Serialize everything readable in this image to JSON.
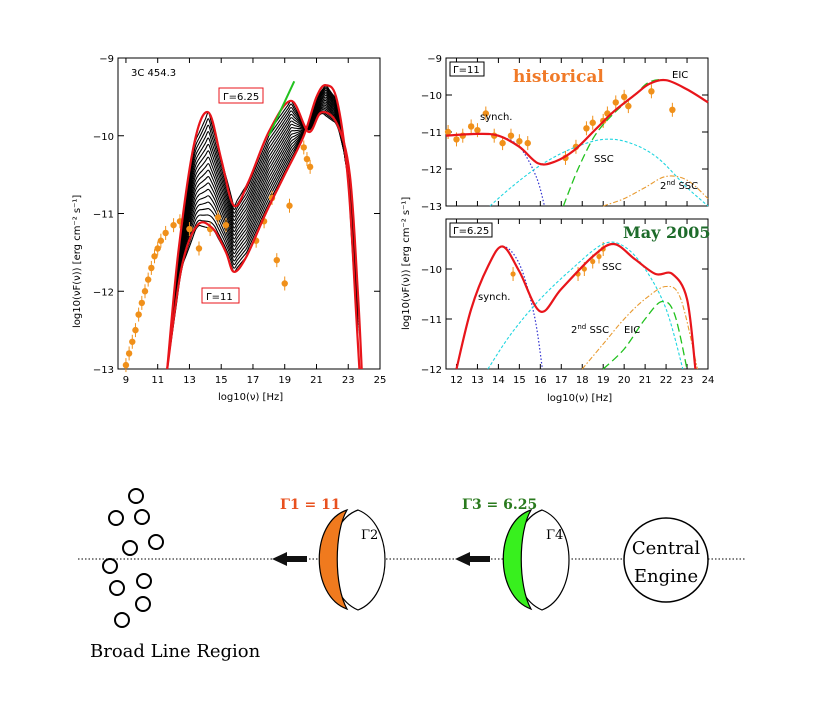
{
  "colors": {
    "red": "#e8151b",
    "orange": "#f0901a",
    "green": "#22c21f",
    "blue": "#3030d0",
    "cyan": "#20d6e0",
    "ssc2": "#e89a30",
    "title_orange": "#f07a28",
    "title_green": "#1d6b2a",
    "gamma1_fill": "#f07a1e",
    "gamma3_fill": "#38f01e",
    "gamma1_text": "#e8501e",
    "gamma3_text": "#2a7a1e"
  },
  "chart_data": [
    {
      "type": "line",
      "panel": "left",
      "source_label": "3C 454.3",
      "xlabel": "log10(ν) [Hz]",
      "ylabel": "log10(νF(ν)) [erg cm⁻² s⁻¹]",
      "xlim": [
        8.5,
        25
      ],
      "ylim": [
        -13,
        -9
      ],
      "xticks": [
        9,
        11,
        13,
        15,
        17,
        19,
        21,
        23,
        25
      ],
      "yticks": [
        -13,
        -12,
        -11,
        -10,
        -9
      ],
      "annotations": [
        {
          "text": "Γ=6.25",
          "box": true,
          "color": "red"
        },
        {
          "text": "Γ=11",
          "box": true,
          "color": "red"
        }
      ],
      "series": [
        {
          "color": "red",
          "points": [
            [
              11.6,
              -13
            ],
            [
              12.3,
              -11.5
            ],
            [
              13.3,
              -10.1
            ],
            [
              14.2,
              -9.7
            ],
            [
              15.0,
              -10.3
            ],
            [
              15.8,
              -10.9
            ],
            [
              16.7,
              -10.6
            ],
            [
              18.0,
              -9.95
            ],
            [
              19.4,
              -9.55
            ],
            [
              20.5,
              -9.95
            ],
            [
              21.3,
              -9.7
            ],
            [
              22.3,
              -9.85
            ],
            [
              23.1,
              -10.5
            ],
            [
              23.6,
              -12.0
            ],
            [
              23.85,
              -13
            ]
          ]
        },
        {
          "color": "red",
          "points": [
            [
              11.6,
              -13
            ],
            [
              12.5,
              -11.7
            ],
            [
              13.5,
              -11.15
            ],
            [
              14.5,
              -11.2
            ],
            [
              15.3,
              -11.5
            ],
            [
              15.8,
              -11.75
            ],
            [
              16.6,
              -11.55
            ],
            [
              17.8,
              -11.0
            ],
            [
              19.0,
              -10.5
            ],
            [
              20.2,
              -10.0
            ],
            [
              21.0,
              -9.5
            ],
            [
              21.6,
              -9.35
            ],
            [
              22.3,
              -9.55
            ],
            [
              23.0,
              -10.6
            ],
            [
              23.5,
              -12.3
            ],
            [
              23.7,
              -13
            ]
          ]
        }
      ],
      "family_curves": 18,
      "data_points": [
        [
          9.0,
          -12.95
        ],
        [
          9.2,
          -12.8
        ],
        [
          9.4,
          -12.65
        ],
        [
          9.6,
          -12.5
        ],
        [
          9.8,
          -12.3
        ],
        [
          10.0,
          -12.15
        ],
        [
          10.2,
          -12.0
        ],
        [
          10.4,
          -11.85
        ],
        [
          10.6,
          -11.7
        ],
        [
          10.8,
          -11.55
        ],
        [
          11.0,
          -11.45
        ],
        [
          11.2,
          -11.35
        ],
        [
          11.5,
          -11.25
        ],
        [
          12.0,
          -11.15
        ],
        [
          12.4,
          -11.1
        ],
        [
          13.0,
          -11.2
        ],
        [
          13.6,
          -11.45
        ],
        [
          14.3,
          -11.2
        ],
        [
          14.8,
          -11.05
        ],
        [
          15.3,
          -11.15
        ],
        [
          17.2,
          -11.35
        ],
        [
          17.7,
          -11.1
        ],
        [
          18.2,
          -10.8
        ],
        [
          18.5,
          -11.6
        ],
        [
          19.0,
          -11.9
        ],
        [
          19.3,
          -10.9
        ],
        [
          20.2,
          -10.15
        ],
        [
          20.4,
          -10.3
        ],
        [
          20.6,
          -10.4
        ]
      ]
    },
    {
      "type": "line",
      "panel": "top-right",
      "title": "historical",
      "box_label": "Γ=11",
      "xlim": [
        11.5,
        24
      ],
      "ylim": [
        -13,
        -9
      ],
      "yticks": [
        -13,
        -12,
        -11,
        -10,
        -9
      ],
      "labels": [
        "synch.",
        "SSC",
        "EIC",
        "2nd SSC"
      ],
      "series": [
        {
          "name": "synch.",
          "color": "blue",
          "points": [
            [
              11.6,
              -11.1
            ],
            [
              13.0,
              -11.05
            ],
            [
              14.0,
              -11.1
            ],
            [
              15.0,
              -11.4
            ],
            [
              15.8,
              -12.2
            ],
            [
              16.2,
              -13
            ]
          ]
        },
        {
          "name": "SSC",
          "color": "cyan",
          "points": [
            [
              13.6,
              -13
            ],
            [
              14.6,
              -12.5
            ],
            [
              16.0,
              -11.9
            ],
            [
              17.5,
              -11.45
            ],
            [
              19.0,
              -11.2
            ],
            [
              20.3,
              -11.3
            ],
            [
              21.6,
              -11.7
            ],
            [
              23.0,
              -12.5
            ],
            [
              24,
              -13
            ]
          ]
        },
        {
          "name": "EIC",
          "color": "green",
          "points": [
            [
              17.1,
              -13
            ],
            [
              17.8,
              -12.0
            ],
            [
              18.6,
              -11.1
            ],
            [
              19.5,
              -10.5
            ],
            [
              20.5,
              -10.0
            ],
            [
              21.2,
              -9.65
            ],
            [
              22.0,
              -9.6
            ],
            [
              23.0,
              -9.85
            ],
            [
              24,
              -10.2
            ]
          ]
        },
        {
          "name": "2nd SSC",
          "color": "ssc2",
          "points": [
            [
              19.0,
              -13
            ],
            [
              20.0,
              -12.8
            ],
            [
              21.0,
              -12.5
            ],
            [
              22.0,
              -12.2
            ],
            [
              23.0,
              -12.3
            ],
            [
              24,
              -12.8
            ]
          ]
        },
        {
          "name": "total",
          "color": "red",
          "points": [
            [
              11.5,
              -11.1
            ],
            [
              13.0,
              -11.05
            ],
            [
              14.0,
              -11.1
            ],
            [
              15.0,
              -11.4
            ],
            [
              15.9,
              -11.85
            ],
            [
              16.7,
              -11.8
            ],
            [
              17.6,
              -11.5
            ],
            [
              18.6,
              -10.95
            ],
            [
              19.5,
              -10.45
            ],
            [
              20.5,
              -10.0
            ],
            [
              21.2,
              -9.7
            ],
            [
              22.0,
              -9.6
            ],
            [
              23.0,
              -9.85
            ],
            [
              24,
              -10.2
            ]
          ]
        }
      ],
      "data_points": [
        [
          11.6,
          -11.0
        ],
        [
          12.0,
          -11.2
        ],
        [
          12.3,
          -11.1
        ],
        [
          12.7,
          -10.85
        ],
        [
          13.0,
          -10.95
        ],
        [
          13.4,
          -10.5
        ],
        [
          13.8,
          -11.1
        ],
        [
          14.2,
          -11.3
        ],
        [
          14.6,
          -11.1
        ],
        [
          15.0,
          -11.25
        ],
        [
          15.4,
          -11.3
        ],
        [
          17.2,
          -11.7
        ],
        [
          17.7,
          -11.4
        ],
        [
          18.2,
          -10.9
        ],
        [
          18.5,
          -10.75
        ],
        [
          19.0,
          -10.7
        ],
        [
          19.2,
          -10.5
        ],
        [
          19.6,
          -10.2
        ],
        [
          20.0,
          -10.05
        ],
        [
          20.2,
          -10.3
        ],
        [
          21.3,
          -9.9
        ],
        [
          22.3,
          -10.4
        ]
      ]
    },
    {
      "type": "line",
      "panel": "bottom-right",
      "title": "May 2005",
      "box_label": "Γ=6.25",
      "xlabel": "log10(ν) [Hz]",
      "ylabel": "log10(νF(ν)) [erg cm⁻² s⁻¹]",
      "xlim": [
        11.5,
        24
      ],
      "ylim": [
        -12,
        -9
      ],
      "xticks": [
        12,
        13,
        14,
        15,
        16,
        17,
        18,
        19,
        20,
        21,
        22,
        23,
        24
      ],
      "yticks": [
        -12,
        -11,
        -10
      ],
      "labels": [
        "synch.",
        "SSC",
        "2nd SSC",
        "EIC"
      ],
      "series": [
        {
          "name": "synch.",
          "color": "blue",
          "points": [
            [
              12.0,
              -12.0
            ],
            [
              12.7,
              -10.8
            ],
            [
              13.5,
              -9.95
            ],
            [
              14.2,
              -9.55
            ],
            [
              15.0,
              -9.9
            ],
            [
              15.7,
              -10.9
            ],
            [
              16.1,
              -12.0
            ]
          ]
        },
        {
          "name": "SSC",
          "color": "cyan",
          "points": [
            [
              13.5,
              -12.0
            ],
            [
              14.6,
              -11.3
            ],
            [
              16.0,
              -10.6
            ],
            [
              17.5,
              -10.0
            ],
            [
              19.0,
              -9.5
            ],
            [
              20.0,
              -9.55
            ],
            [
              21.0,
              -10.0
            ],
            [
              22.0,
              -10.8
            ],
            [
              22.8,
              -12.0
            ]
          ]
        },
        {
          "name": "2nd SSC",
          "color": "ssc2",
          "points": [
            [
              18.0,
              -12.0
            ],
            [
              19.0,
              -11.5
            ],
            [
              20.0,
              -11.0
            ],
            [
              21.0,
              -10.6
            ],
            [
              22.0,
              -10.35
            ],
            [
              22.7,
              -10.6
            ],
            [
              23.5,
              -12.0
            ]
          ]
        },
        {
          "name": "EIC",
          "color": "green",
          "points": [
            [
              19.0,
              -12.0
            ],
            [
              20.0,
              -11.6
            ],
            [
              21.0,
              -11.0
            ],
            [
              21.8,
              -10.65
            ],
            [
              22.4,
              -10.9
            ],
            [
              23.0,
              -12.0
            ]
          ]
        },
        {
          "name": "total",
          "color": "red",
          "points": [
            [
              12.0,
              -12.0
            ],
            [
              12.7,
              -10.8
            ],
            [
              13.5,
              -9.95
            ],
            [
              14.2,
              -9.55
            ],
            [
              15.0,
              -10.05
            ],
            [
              16.0,
              -10.85
            ],
            [
              17.0,
              -10.4
            ],
            [
              18.5,
              -9.75
            ],
            [
              19.5,
              -9.5
            ],
            [
              20.5,
              -9.8
            ],
            [
              21.5,
              -10.1
            ],
            [
              22.3,
              -10.1
            ],
            [
              23.0,
              -10.6
            ],
            [
              23.4,
              -12.0
            ]
          ]
        }
      ],
      "data_points": [
        [
          14.7,
          -10.1
        ],
        [
          17.8,
          -10.1
        ],
        [
          18.1,
          -10.0
        ],
        [
          18.5,
          -9.85
        ],
        [
          18.8,
          -9.75
        ],
        [
          19.0,
          -9.6
        ]
      ]
    }
  ],
  "diagram": {
    "gamma1_label": "Γ1 = 11",
    "gamma2_label": "Γ2",
    "gamma3_label": "Γ3 = 6.25",
    "gamma4_label": "Γ4",
    "engine_line1": "Central",
    "engine_line2": "Engine",
    "blr_label": "Broad Line Region"
  }
}
